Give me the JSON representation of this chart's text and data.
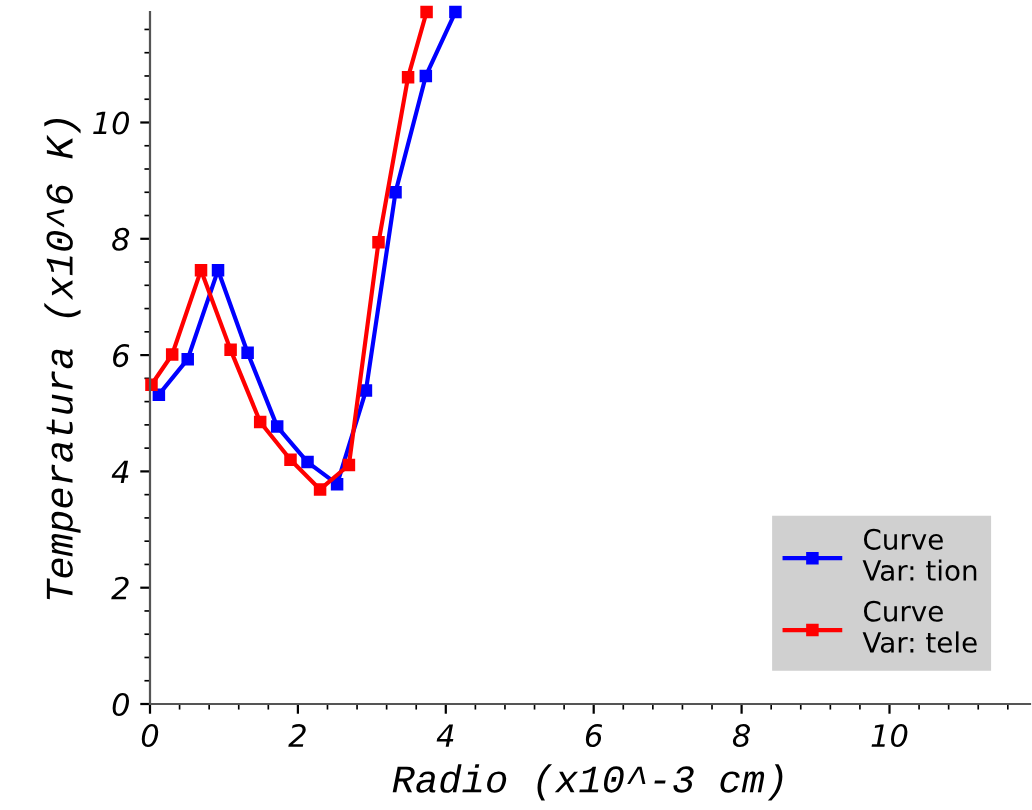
{
  "chart_data": {
    "type": "line",
    "xlabel": "Radio (x10^-3 cm)",
    "ylabel": "Temperatura (x10^6 K)",
    "xlim": [
      0,
      11.9
    ],
    "ylim": [
      0,
      11.9
    ],
    "xticks": [
      0,
      2,
      4,
      6,
      8,
      10
    ],
    "yticks": [
      0,
      2,
      4,
      6,
      8,
      10
    ],
    "marker": "square",
    "line_style": "solid",
    "grid": false,
    "legend": "bottom right",
    "series": [
      {
        "name": "Curve\nVar: tion",
        "color": "#0000ff",
        "x": [
          0.12,
          0.51,
          0.92,
          1.32,
          1.72,
          2.13,
          2.53,
          2.92,
          3.32,
          3.73,
          4.13
        ],
        "values": [
          5.32,
          5.93,
          7.46,
          6.04,
          4.77,
          4.16,
          3.78,
          5.39,
          8.8,
          10.8,
          11.9
        ]
      },
      {
        "name": "Curve\nVar: tele",
        "color": "#ff0000",
        "x": [
          0.02,
          0.3,
          0.69,
          1.09,
          1.49,
          1.9,
          2.3,
          2.69,
          3.09,
          3.49,
          3.74
        ],
        "values": [
          5.49,
          6.01,
          7.46,
          6.09,
          4.85,
          4.2,
          3.69,
          4.11,
          7.94,
          10.78,
          11.9
        ]
      }
    ]
  }
}
